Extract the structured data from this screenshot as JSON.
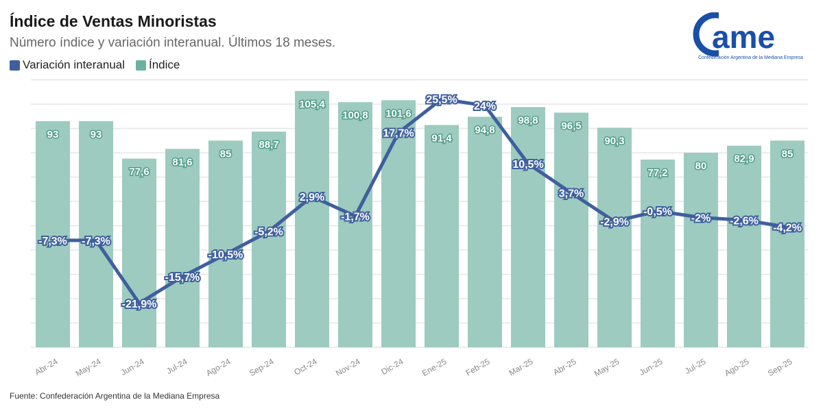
{
  "header": {
    "title": "Índice de Ventas Minoristas",
    "subtitle": "Número índice y variación interanual. Últimos 18 meses."
  },
  "logo": {
    "text": "came",
    "tagline": "Confederación Argentina de la Mediana Empresa",
    "color": "#1a4fa8"
  },
  "source": "Fuente: Confederación Argentina de la Mediana Empresa",
  "chart_data": {
    "type": "bar+line",
    "title": "Índice de Ventas Minoristas",
    "subtitle": "Número índice y variación interanual. Últimos 18 meses.",
    "legend_position": "top-left",
    "grid": true,
    "categories": [
      "Abr-24",
      "May-24",
      "Jun-24",
      "Jul-24",
      "Ago-24",
      "Sep-24",
      "Oct-24",
      "Nov-24",
      "Dic-24",
      "Ene-25",
      "Feb-25",
      "Mar-25",
      "Abr-25",
      "May-25",
      "Jun-25",
      "Jul-25",
      "Ago-25",
      "Sep-25"
    ],
    "series": [
      {
        "name": "Variación interanual",
        "type": "line",
        "color": "#3f5f9e",
        "values": [
          -7.3,
          -7.3,
          -21.9,
          -15.7,
          -10.5,
          -5.2,
          2.9,
          -1.7,
          17.7,
          25.5,
          24,
          10.5,
          3.7,
          -2.9,
          -0.5,
          -2,
          -2.6,
          -4.2
        ],
        "labels": [
          "-7,3%",
          "-7,3%",
          "-21,9%",
          "-15,7%",
          "-10,5%",
          "-5,2%",
          "2,9%",
          "-1,7%",
          "17,7%",
          "25,5%",
          "24%",
          "10,5%",
          "3,7%",
          "-2,9%",
          "-0,5%",
          "-2%",
          "-2,6%",
          "-4,2%"
        ]
      },
      {
        "name": "Índice",
        "type": "bar",
        "color": "#9dcbbf",
        "values": [
          93,
          93,
          77.6,
          81.6,
          85,
          88.7,
          105.4,
          100.8,
          101.6,
          91.4,
          94.8,
          98.8,
          96.5,
          90.3,
          77.2,
          80,
          82.9,
          85
        ],
        "labels": [
          "93",
          "93",
          "77,6",
          "81,6",
          "85",
          "88,7",
          "105,4",
          "100,8",
          "101,6",
          "91,4",
          "94,8",
          "98,8",
          "96,5",
          "90,3",
          "77,2",
          "80",
          "82,9",
          "85"
        ]
      }
    ]
  }
}
